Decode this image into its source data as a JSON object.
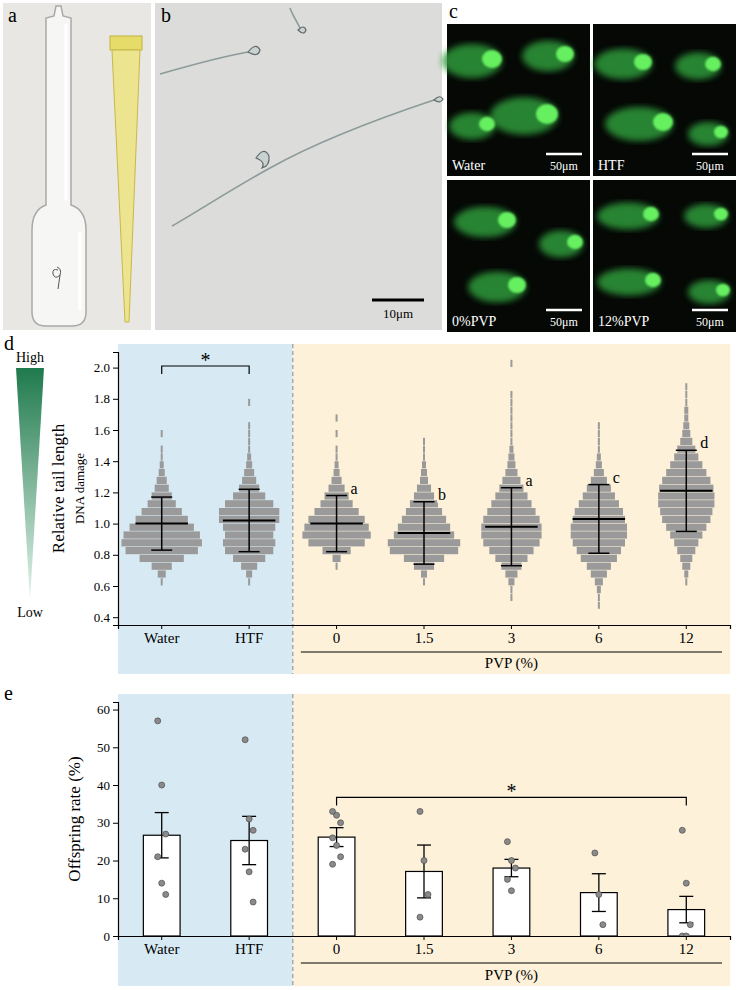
{
  "images": {
    "a": {
      "letter": "a"
    },
    "b": {
      "letter": "b",
      "scale_bar": "10μm"
    },
    "c": {
      "letter": "c",
      "tiles": [
        {
          "label": "Water",
          "scale_bar": "50μm"
        },
        {
          "label": "HTF",
          "scale_bar": "50μm"
        },
        {
          "label": "0%PVP",
          "scale_bar": "50μm"
        },
        {
          "label": "12%PVP",
          "scale_bar": "50μm"
        }
      ]
    }
  },
  "chart_data": [
    {
      "type": "swarm",
      "letter": "d",
      "y_label": "Relative tail length",
      "y_label2": "DNA damage",
      "scale_high": "High",
      "scale_low": "Low",
      "categories": [
        "Water",
        "HTF",
        "0",
        "1.5",
        "3",
        "6",
        "12"
      ],
      "group_label": "PVP (%)",
      "color": "#9a9a9a",
      "bins": [
        0.4,
        0.45,
        0.5,
        0.55,
        0.6,
        0.65,
        0.7,
        0.75,
        0.8,
        0.85,
        0.9,
        0.95,
        1.0,
        1.05,
        1.1,
        1.15,
        1.2,
        1.25,
        1.3,
        1.35,
        1.4,
        1.45,
        1.5,
        1.55,
        1.6,
        1.65,
        1.7,
        1.75,
        1.8,
        1.85,
        1.9,
        1.95,
        2.0,
        2.05,
        2.1
      ],
      "density": [
        [
          0,
          0,
          0,
          0,
          1,
          4,
          10,
          22,
          36,
          40,
          38,
          32,
          26,
          20,
          14,
          10,
          7,
          5,
          3,
          2,
          1,
          1,
          0,
          1,
          0,
          0,
          0,
          0,
          0,
          0,
          0,
          0,
          0,
          0
        ],
        [
          0,
          0,
          0,
          0,
          1,
          3,
          8,
          16,
          24,
          26,
          24,
          26,
          30,
          30,
          24,
          16,
          10,
          7,
          5,
          3,
          2,
          1,
          1,
          1,
          1,
          0,
          0,
          1,
          0,
          0,
          0,
          0,
          0,
          0
        ],
        [
          0,
          0,
          0,
          0,
          0,
          0,
          1,
          4,
          14,
          28,
          34,
          32,
          28,
          22,
          16,
          12,
          8,
          5,
          3,
          2,
          1,
          1,
          0,
          1,
          0,
          1,
          0,
          0,
          0,
          0,
          0,
          0,
          0,
          0
        ],
        [
          0,
          0,
          0,
          0,
          1,
          3,
          10,
          20,
          34,
          36,
          30,
          26,
          22,
          18,
          14,
          10,
          7,
          4,
          3,
          2,
          1,
          1,
          1,
          0,
          0,
          0,
          0,
          0,
          0,
          0,
          0,
          0,
          0,
          0
        ],
        [
          0,
          0,
          1,
          1,
          3,
          6,
          10,
          16,
          22,
          28,
          30,
          30,
          28,
          24,
          20,
          16,
          12,
          9,
          6,
          4,
          3,
          2,
          1,
          1,
          1,
          1,
          1,
          1,
          1,
          0,
          0,
          0,
          1,
          0
        ],
        [
          0,
          1,
          1,
          2,
          4,
          8,
          12,
          18,
          22,
          26,
          28,
          28,
          26,
          24,
          20,
          16,
          12,
          8,
          5,
          3,
          2,
          1,
          1,
          1,
          1,
          0,
          0,
          0,
          0,
          0,
          0,
          0,
          0,
          0
        ],
        [
          0,
          0,
          0,
          0,
          1,
          2,
          4,
          6,
          9,
          12,
          16,
          20,
          24,
          26,
          28,
          28,
          27,
          24,
          20,
          16,
          12,
          9,
          6,
          4,
          3,
          2,
          2,
          1,
          1,
          1,
          0,
          0,
          0,
          0
        ]
      ],
      "mean": [
        1.0,
        1.02,
        1.0,
        0.94,
        0.98,
        1.03,
        1.21
      ],
      "sd": [
        0.17,
        0.2,
        0.18,
        0.2,
        0.25,
        0.22,
        0.26
      ],
      "letters": [
        null,
        null,
        "a",
        "b",
        "a",
        "c",
        "d"
      ],
      "annotations": [
        {
          "text": "*",
          "between": [
            "Water",
            "HTF"
          ]
        }
      ],
      "ylim": [
        0.35,
        2.1
      ],
      "yticks": [
        0.4,
        0.6,
        0.8,
        {
          "value": 1,
          "label": "1.0"
        },
        1.2,
        1.4,
        1.6,
        1.8,
        {
          "value": 2,
          "label": "2.0"
        }
      ]
    },
    {
      "type": "bar",
      "letter": "e",
      "y_label": "Offspring rate (%)",
      "categories": [
        "Water",
        "HTF",
        "0",
        "1.5",
        "3",
        "6",
        "12"
      ],
      "group_label": "PVP (%)",
      "color": "#ffffff",
      "values": [
        26.7,
        25.3,
        26.2,
        17.1,
        18.0,
        11.5,
        7.0
      ],
      "errors": [
        6.0,
        6.4,
        2.5,
        7.0,
        2.3,
        5.0,
        3.5
      ],
      "points": [
        [
          57,
          40,
          27,
          21,
          14,
          11
        ],
        [
          52,
          31,
          28,
          23,
          17,
          9
        ],
        [
          33,
          32,
          30,
          26,
          24,
          21,
          19
        ],
        [
          33,
          20,
          11,
          5
        ],
        [
          25,
          20,
          18,
          15,
          12
        ],
        [
          22,
          11,
          3
        ],
        [
          28,
          14,
          3,
          0,
          0
        ]
      ],
      "annotations": [
        {
          "text": "*",
          "between": [
            "0",
            "12"
          ]
        }
      ],
      "ylim": [
        0,
        62
      ],
      "yticks": [
        0,
        10,
        20,
        30,
        40,
        50,
        60
      ]
    }
  ]
}
